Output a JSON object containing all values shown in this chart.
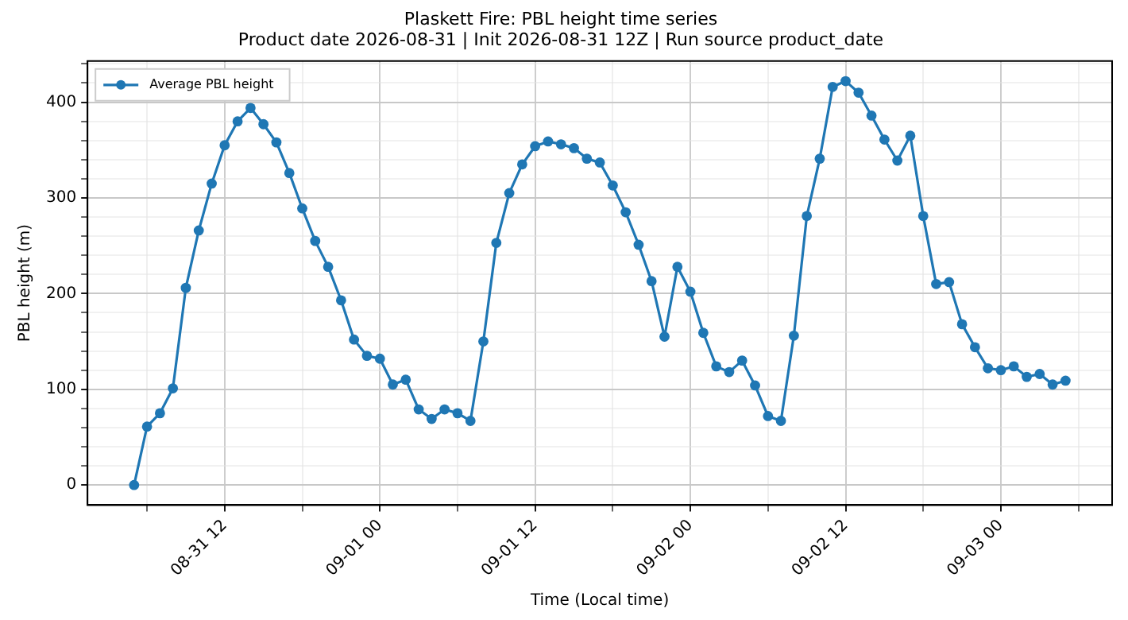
{
  "chart_data": {
    "type": "line",
    "title": "Plaskett Fire: PBL height time series",
    "subtitle": "Product date 2026-08-31 | Init 2026-08-31 12Z | Run source product_date",
    "xlabel": "Time (Local time)",
    "ylabel": "PBL height (m)",
    "x": [
      "2026-08-31T05:00",
      "2026-08-31T06:00",
      "2026-08-31T07:00",
      "2026-08-31T08:00",
      "2026-08-31T09:00",
      "2026-08-31T10:00",
      "2026-08-31T11:00",
      "2026-08-31T12:00",
      "2026-08-31T13:00",
      "2026-08-31T14:00",
      "2026-08-31T15:00",
      "2026-08-31T16:00",
      "2026-08-31T17:00",
      "2026-08-31T18:00",
      "2026-08-31T19:00",
      "2026-08-31T20:00",
      "2026-08-31T21:00",
      "2026-08-31T22:00",
      "2026-08-31T23:00",
      "2026-09-01T00:00",
      "2026-09-01T01:00",
      "2026-09-01T02:00",
      "2026-09-01T03:00",
      "2026-09-01T04:00",
      "2026-09-01T05:00",
      "2026-09-01T06:00",
      "2026-09-01T07:00",
      "2026-09-01T08:00",
      "2026-09-01T09:00",
      "2026-09-01T10:00",
      "2026-09-01T11:00",
      "2026-09-01T12:00",
      "2026-09-01T13:00",
      "2026-09-01T14:00",
      "2026-09-01T15:00",
      "2026-09-01T16:00",
      "2026-09-01T17:00",
      "2026-09-01T18:00",
      "2026-09-01T19:00",
      "2026-09-01T20:00",
      "2026-09-01T21:00",
      "2026-09-01T22:00",
      "2026-09-01T23:00",
      "2026-09-02T00:00",
      "2026-09-02T01:00",
      "2026-09-02T02:00",
      "2026-09-02T03:00",
      "2026-09-02T04:00",
      "2026-09-02T05:00",
      "2026-09-02T06:00",
      "2026-09-02T07:00",
      "2026-09-02T08:00",
      "2026-09-02T09:00",
      "2026-09-02T10:00",
      "2026-09-02T11:00",
      "2026-09-02T12:00",
      "2026-09-02T13:00",
      "2026-09-02T14:00",
      "2026-09-02T15:00",
      "2026-09-02T16:00",
      "2026-09-02T17:00",
      "2026-09-02T18:00",
      "2026-09-02T19:00",
      "2026-09-02T20:00",
      "2026-09-02T21:00",
      "2026-09-02T22:00",
      "2026-09-02T23:00",
      "2026-09-03T00:00",
      "2026-09-03T01:00",
      "2026-09-03T02:00",
      "2026-09-03T03:00",
      "2026-09-03T04:00",
      "2026-09-03T05:00"
    ],
    "series": [
      {
        "name": "Average PBL height",
        "color": "#1f77b4",
        "values": [
          0,
          61,
          75,
          101,
          206,
          266,
          315,
          355,
          380,
          394,
          377,
          358,
          326,
          289,
          255,
          228,
          193,
          152,
          135,
          132,
          105,
          110,
          79,
          69,
          79,
          75,
          67,
          150,
          253,
          305,
          335,
          354,
          359,
          356,
          352,
          341,
          337,
          313,
          285,
          251,
          213,
          155,
          228,
          202,
          159,
          124,
          118,
          130,
          104,
          72,
          67,
          156,
          281,
          341,
          416,
          422,
          410,
          386,
          361,
          339,
          365,
          281,
          210,
          212,
          168,
          144,
          122,
          120,
          124,
          113,
          116,
          105,
          109
        ]
      }
    ],
    "xlim": [
      "2026-08-31T01:24",
      "2026-09-03T08:36"
    ],
    "xticks": [
      {
        "value": "2026-08-31T06:00",
        "label": null
      },
      {
        "value": "2026-08-31T12:00",
        "label": "08-31 12"
      },
      {
        "value": "2026-08-31T18:00",
        "label": null
      },
      {
        "value": "2026-09-01T00:00",
        "label": "09-01 00"
      },
      {
        "value": "2026-09-01T06:00",
        "label": null
      },
      {
        "value": "2026-09-01T12:00",
        "label": "09-01 12"
      },
      {
        "value": "2026-09-01T18:00",
        "label": null
      },
      {
        "value": "2026-09-02T00:00",
        "label": "09-02 00"
      },
      {
        "value": "2026-09-02T06:00",
        "label": null
      },
      {
        "value": "2026-09-02T12:00",
        "label": "09-02 12"
      },
      {
        "value": "2026-09-02T18:00",
        "label": null
      },
      {
        "value": "2026-09-03T00:00",
        "label": "09-03 00"
      },
      {
        "value": "2026-09-03T06:00",
        "label": null
      }
    ],
    "ylim": [
      -21,
      443
    ],
    "yticks": [
      0,
      {
        "value": 20,
        "label": null
      },
      {
        "value": 40,
        "label": null
      },
      {
        "value": 60,
        "label": null
      },
      {
        "value": 80,
        "label": null
      },
      100,
      {
        "value": 120,
        "label": null
      },
      {
        "value": 140,
        "label": null
      },
      {
        "value": 160,
        "label": null
      },
      {
        "value": 180,
        "label": null
      },
      200,
      {
        "value": 220,
        "label": null
      },
      {
        "value": 240,
        "label": null
      },
      {
        "value": 260,
        "label": null
      },
      {
        "value": 280,
        "label": null
      },
      300,
      {
        "value": 320,
        "label": null
      },
      {
        "value": 340,
        "label": null
      },
      {
        "value": 360,
        "label": null
      },
      {
        "value": 380,
        "label": null
      },
      400,
      {
        "value": 420,
        "label": null
      },
      {
        "value": 440,
        "label": null
      }
    ],
    "grid": true,
    "legend": "top left",
    "marker": "circle",
    "line_style": "solid"
  }
}
